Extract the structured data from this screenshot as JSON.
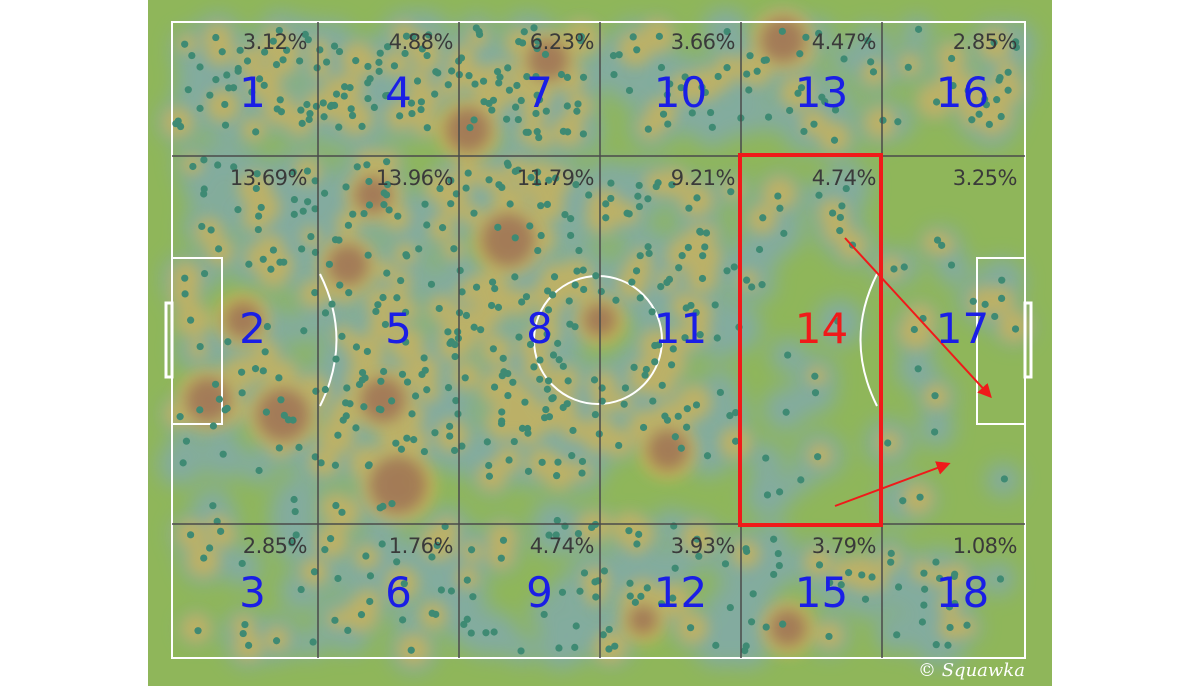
{
  "colors": {
    "pitch": "#8fb65a",
    "lines": "#ffffff",
    "grid": "#4a4a4a",
    "zone_label": "#1a1ee6",
    "highlight": "#f01a1a",
    "dot": "#3f8a73",
    "heat_cool": "#7fa8b6",
    "heat_warm": "#c9b25a",
    "heat_hot": "#9b6a52"
  },
  "zones": [
    {
      "id": "1",
      "pct": "3.12%"
    },
    {
      "id": "2",
      "pct": "13.69%"
    },
    {
      "id": "3",
      "pct": "2.85%"
    },
    {
      "id": "4",
      "pct": "4.88%"
    },
    {
      "id": "5",
      "pct": "13.96%"
    },
    {
      "id": "6",
      "pct": "1.76%"
    },
    {
      "id": "7",
      "pct": "6.23%"
    },
    {
      "id": "8",
      "pct": "11.79%"
    },
    {
      "id": "9",
      "pct": "4.74%"
    },
    {
      "id": "10",
      "pct": "3.66%"
    },
    {
      "id": "11",
      "pct": "9.21%"
    },
    {
      "id": "12",
      "pct": "3.93%"
    },
    {
      "id": "13",
      "pct": "4.47%"
    },
    {
      "id": "14",
      "pct": "4.74%"
    },
    {
      "id": "15",
      "pct": "3.79%"
    },
    {
      "id": "16",
      "pct": "2.85%"
    },
    {
      "id": "17",
      "pct": "3.25%"
    },
    {
      "id": "18",
      "pct": "1.08%"
    }
  ],
  "highlighted_zone": "14",
  "credit": "© Squawka"
}
